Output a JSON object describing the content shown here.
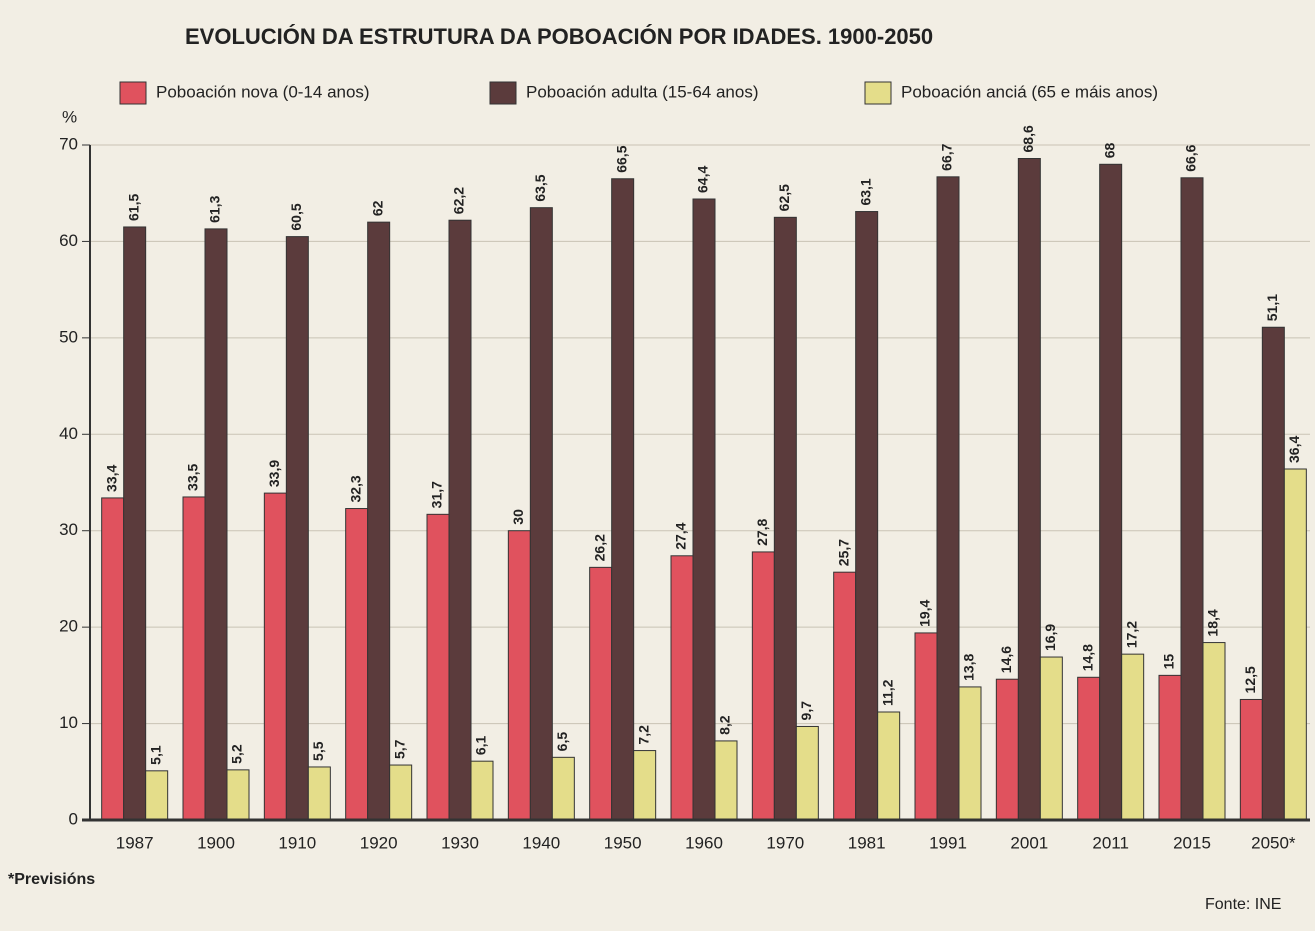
{
  "chart_data": {
    "type": "bar",
    "title": "EVOLUCIÓN DA ESTRUTURA DA POBOACIÓN POR IDADES. 1900-2050",
    "y_label": "%",
    "footnote": "*Previsións",
    "source": "Fonte: INE",
    "categories": [
      "1987",
      "1900",
      "1910",
      "1920",
      "1930",
      "1940",
      "1950",
      "1960",
      "1970",
      "1981",
      "1991",
      "2001",
      "2011",
      "2015",
      "2050*"
    ],
    "series": [
      {
        "name": "Poboación nova (0-14 anos)",
        "color": "#e0525e",
        "values": [
          33.4,
          33.5,
          33.9,
          32.3,
          31.7,
          30,
          26.2,
          27.4,
          27.8,
          25.7,
          19.4,
          14.6,
          14.8,
          15,
          12.5
        ],
        "value_labels": [
          "33,4",
          "33,5",
          "33,9",
          "32,3",
          "31,7",
          "30",
          "26,2",
          "27,4",
          "27,8",
          "25,7",
          "19,4",
          "14,6",
          "14,8",
          "15",
          "12,5"
        ]
      },
      {
        "name": "Poboación adulta (15-64 anos)",
        "color": "#5b3b3c",
        "values": [
          61.5,
          61.3,
          60.5,
          62,
          62.2,
          63.5,
          66.5,
          64.4,
          62.5,
          63.1,
          66.7,
          68.6,
          68,
          66.6,
          51.1
        ],
        "value_labels": [
          "61,5",
          "61,3",
          "60,5",
          "62",
          "62,2",
          "63,5",
          "66,5",
          "64,4",
          "62,5",
          "63,1",
          "66,7",
          "68,6",
          "68",
          "66,6",
          "51,1"
        ]
      },
      {
        "name": "Poboación anciá (65 e máis anos)",
        "color": "#e4dd8a",
        "values": [
          5.1,
          5.2,
          5.5,
          5.7,
          6.1,
          6.5,
          7.2,
          8.2,
          9.7,
          11.2,
          13.8,
          16.9,
          17.2,
          18.4,
          36.4
        ],
        "value_labels": [
          "5,1",
          "5,2",
          "5,5",
          "5,7",
          "6,1",
          "6,5",
          "7,2",
          "8,2",
          "9,7",
          "11,2",
          "13,8",
          "16,9",
          "17,2",
          "18,4",
          "36,4"
        ]
      }
    ],
    "ylim": [
      0,
      70
    ],
    "yticks": [
      0,
      10,
      20,
      30,
      40,
      50,
      60,
      70
    ],
    "grid": true
  }
}
